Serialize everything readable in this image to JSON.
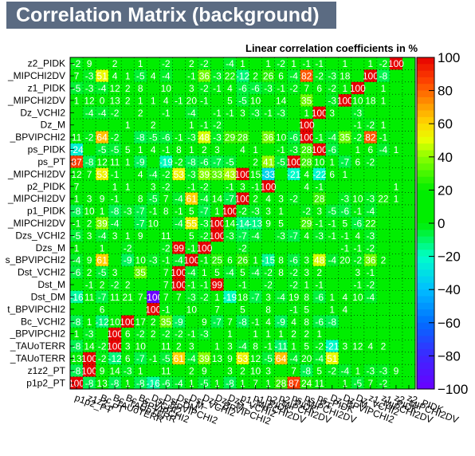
{
  "title": "Correlation Matrix (background)",
  "subtitle": "Linear correlation coefficients in %",
  "chart_data": {
    "type": "heatmap",
    "title": "Correlation Matrix (background)",
    "subtitle": "Linear correlation coefficients in %",
    "grid": true,
    "row_labels": [
      "z2_PIDK",
      "_MIPCHI2DV",
      "z1_PIDK",
      "_MIPCHI2DV",
      "Dz_VCHI2",
      "Dz_M",
      "_BPVIPCHI2",
      "ps_PIDK",
      "ps_PT",
      "_MIPCHI2DV",
      "p2_PIDK",
      "_MIPCHI2DV",
      "p1_PIDK",
      "_MIPCHI2DV",
      "Dzs_VCHI2",
      "Dzs_M",
      "s_BPVIPCHI2",
      "Dst_VCHI2",
      "Dst_M",
      "Dst_DM",
      "t_BPVIPCHI2",
      "Bc_VCHI2",
      "_BPVIPCHI2",
      "_TAUoTERR",
      "_TAUoTERR",
      "z1z2_PT",
      "p1p2_PT"
    ],
    "column_labels": [
      "p1p2_PT",
      "z1z2_PT",
      "Bc_TAUoTERR",
      "Bc_TAUoTERR",
      "Bc_BPVIPCHI2",
      "Bc_VCHI2",
      "Dst_BPVIPCHI2",
      "Dst_DM",
      "Dst_M",
      "Dst_VCHI2",
      "Dzs_BPVIPCHI2",
      "Dzs_M",
      "Dzs_VCHI2",
      "p1_MIPCHI2DV",
      "p1_PIDK",
      "p2_MIPCHI2DV",
      "p2_PIDK",
      "ps_MIPCHI2DV",
      "ps_PT",
      "ps_PIDK",
      "Dz_BPVIPCHI2",
      "Dz_M",
      "Dz_VCHI2",
      "z1_MIPCHI2DV",
      "z1_PIDK",
      "z2_MIPCHI2DV",
      "z2_PIDK"
    ],
    "values": [
      [
        -2,
        9,
        null,
        2,
        null,
        1,
        null,
        -2,
        null,
        2,
        -2,
        null,
        -4,
        1,
        null,
        1,
        -2,
        1,
        -1,
        -1,
        null,
        1,
        null,
        1,
        -2,
        100
      ],
      [
        7,
        -3,
        51,
        4,
        1,
        -5,
        4,
        -4,
        null,
        -1,
        36,
        -3,
        22,
        -12,
        2,
        26,
        6,
        -4,
        82,
        -2,
        -3,
        18,
        null,
        100,
        -8
      ],
      [
        -5,
        -3,
        -4,
        12,
        2,
        8,
        null,
        10,
        null,
        3,
        -2,
        -1,
        4,
        -6,
        -6,
        -3,
        -1,
        -2,
        7,
        6,
        -2,
        1,
        100,
        null,
        1
      ],
      [
        1,
        12,
        0,
        13,
        2,
        1,
        1,
        4,
        -1,
        20,
        -1,
        null,
        5,
        -5,
        10,
        null,
        14,
        null,
        35,
        null,
        -3,
        100,
        10,
        18,
        1
      ],
      [
        null,
        -4,
        -4,
        -2,
        null,
        2,
        null,
        -1,
        null,
        -4,
        null,
        -1,
        -1,
        3,
        -3,
        -1,
        -3,
        null,
        1,
        100,
        3,
        null,
        -3
      ],
      [
        null,
        null,
        null,
        null,
        1,
        null,
        2,
        null,
        null,
        1,
        -1,
        -2,
        null,
        null,
        null,
        null,
        null,
        null,
        100,
        null,
        null,
        null,
        -1,
        -2,
        1
      ],
      [
        11,
        -2,
        64,
        -2,
        null,
        -8,
        -5,
        -6,
        -1,
        -3,
        48,
        -3,
        29,
        28,
        null,
        36,
        10,
        -6,
        100,
        -1,
        -4,
        35,
        -2,
        82,
        -1
      ],
      [
        -24,
        null,
        -5,
        -5,
        5,
        1,
        4,
        -1,
        8,
        1,
        2,
        3,
        null,
        4,
        1,
        null,
        -1,
        -3,
        28,
        100,
        -6,
        null,
        1,
        6,
        -4,
        1
      ],
      [
        87,
        -8,
        12,
        11,
        1,
        -9,
        null,
        -19,
        -2,
        -8,
        -6,
        -7,
        -5,
        null,
        2,
        41,
        -5,
        100,
        28,
        10,
        1,
        -7,
        6,
        -2
      ],
      [
        12,
        7,
        53,
        -1,
        null,
        4,
        -4,
        -2,
        53,
        -3,
        39,
        33,
        43,
        100,
        15,
        -33,
        null,
        -21,
        4,
        -22,
        6,
        1
      ],
      [
        7,
        null,
        null,
        1,
        1,
        null,
        3,
        -2,
        null,
        -1,
        -2,
        null,
        -1,
        3,
        -1,
        100,
        null,
        null,
        4,
        -1,
        null,
        null,
        null,
        null,
        null,
        1
      ],
      [
        1,
        3,
        9,
        -1,
        null,
        8,
        -5,
        7,
        -4,
        61,
        -4,
        14,
        -7,
        100,
        2,
        4,
        3,
        -2,
        null,
        28,
        null,
        -3,
        10,
        -3,
        22,
        1
      ],
      [
        -8,
        10,
        1,
        -8,
        -3,
        -7,
        -1,
        8,
        -1,
        5,
        -7,
        1,
        100,
        -2,
        -3,
        3,
        1,
        null,
        -2,
        3,
        -5,
        -6,
        -1,
        -4
      ],
      [
        -1,
        2,
        39,
        -4,
        null,
        -7,
        10,
        null,
        -4,
        55,
        -3,
        100,
        14,
        -14,
        -13,
        9,
        5,
        null,
        29,
        -1,
        -1,
        5,
        -6,
        22
      ],
      [
        -5,
        3,
        -4,
        3,
        1,
        9,
        null,
        11,
        null,
        5,
        -2,
        100,
        -3,
        -7,
        -4,
        null,
        -3,
        -7,
        4,
        -3,
        -1,
        -1,
        4,
        -3
      ],
      [
        1,
        null,
        1,
        null,
        -2,
        null,
        null,
        -2,
        99,
        -1,
        100,
        null,
        null,
        -2,
        null,
        null,
        null,
        null,
        null,
        null,
        null,
        -1,
        -1,
        -2
      ],
      [
        -4,
        9,
        61,
        null,
        -9,
        10,
        -3,
        -1,
        -4,
        100,
        -1,
        25,
        6,
        26,
        1,
        -15,
        8,
        -6,
        3,
        48,
        -4,
        20,
        -2,
        36,
        2
      ],
      [
        -6,
        2,
        -5,
        3,
        null,
        35,
        null,
        7,
        100,
        -4,
        1,
        5,
        -4,
        5,
        -4,
        -2,
        8,
        -2,
        3,
        2,
        null,
        null,
        3,
        -1
      ],
      [
        null,
        -1,
        2,
        -2,
        2,
        null,
        null,
        7,
        100,
        -1,
        -1,
        99,
        null,
        -1,
        null,
        -2,
        null,
        -2,
        1,
        -1,
        null,
        null,
        -1,
        -2
      ],
      [
        -16,
        11,
        -7,
        11,
        21,
        7,
        -100,
        7,
        7,
        -3,
        -2,
        1,
        -19,
        18,
        -7,
        3,
        -4,
        19,
        8,
        -6,
        1,
        4,
        10,
        -4
      ],
      [
        null,
        null,
        6,
        null,
        null,
        null,
        100,
        -1,
        null,
        10,
        null,
        7,
        null,
        5,
        null,
        8,
        null,
        -1,
        5,
        null,
        1,
        4
      ],
      [
        -8,
        1,
        -12,
        10,
        100,
        17,
        2,
        35,
        -9,
        null,
        9,
        -7,
        7,
        -8,
        -1,
        4,
        -9,
        4,
        8,
        -6,
        -8
      ],
      [
        1,
        -3,
        null,
        100,
        6,
        -2,
        2,
        -2,
        -2,
        -1,
        -3,
        null,
        1,
        null,
        1,
        1,
        1,
        2,
        2,
        1
      ],
      [
        -8,
        14,
        -2,
        100,
        3,
        10,
        null,
        11,
        2,
        3,
        null,
        1,
        3,
        -4,
        8,
        -1,
        -11,
        1,
        5,
        -2,
        -21,
        3,
        12,
        4,
        2
      ],
      [
        13,
        100,
        -2,
        -12,
        6,
        -7,
        -1,
        -5,
        61,
        -4,
        39,
        13,
        9,
        53,
        12,
        -5,
        64,
        -4,
        20,
        -4,
        51
      ],
      [
        -8,
        100,
        9,
        14,
        -3,
        1,
        null,
        11,
        null,
        2,
        9,
        null,
        3,
        2,
        10,
        3,
        null,
        7,
        -8,
        5,
        -2,
        -4,
        1,
        -3,
        -3,
        9
      ],
      [
        100,
        -8,
        13,
        -8,
        1,
        -8,
        -16,
        -6,
        -4,
        1,
        -5,
        1,
        -8,
        1,
        7,
        1,
        28,
        87,
        24,
        11,
        null,
        1,
        -5,
        7,
        -2
      ]
    ],
    "zlim": [
      -100,
      100
    ],
    "colorbar_ticks": [
      "100",
      "80",
      "60",
      "40",
      "20",
      "0",
      "−20",
      "−40",
      "−60",
      "−80",
      "−100"
    ]
  }
}
